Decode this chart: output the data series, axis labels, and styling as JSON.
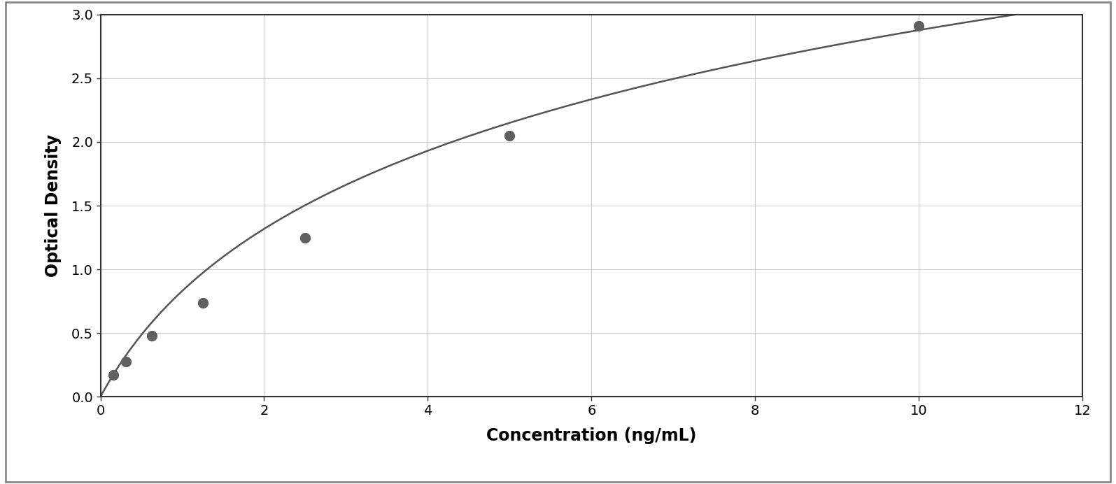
{
  "x_data": [
    0.156,
    0.313,
    0.625,
    1.25,
    2.5,
    5.0,
    10.0
  ],
  "y_data": [
    0.175,
    0.275,
    0.48,
    0.74,
    1.25,
    2.05,
    2.91
  ],
  "x_label": "Concentration (ng/mL)",
  "y_label": "Optical Density",
  "xlim": [
    0,
    12
  ],
  "ylim": [
    0,
    3.0
  ],
  "xticks": [
    0,
    2,
    4,
    6,
    8,
    10,
    12
  ],
  "yticks": [
    0,
    0.5,
    1.0,
    1.5,
    2.0,
    2.5,
    3.0
  ],
  "data_color": "#606060",
  "line_color": "#555555",
  "marker_size": 10,
  "line_width": 1.8,
  "grid_color": "#cccccc",
  "plot_bg_color": "#ffffff",
  "fig_bg_color": "#ffffff",
  "outer_border_color": "#aaaaaa",
  "xlabel_fontsize": 17,
  "ylabel_fontsize": 17,
  "tick_fontsize": 14,
  "xlabel_fontweight": "bold",
  "ylabel_fontweight": "bold"
}
